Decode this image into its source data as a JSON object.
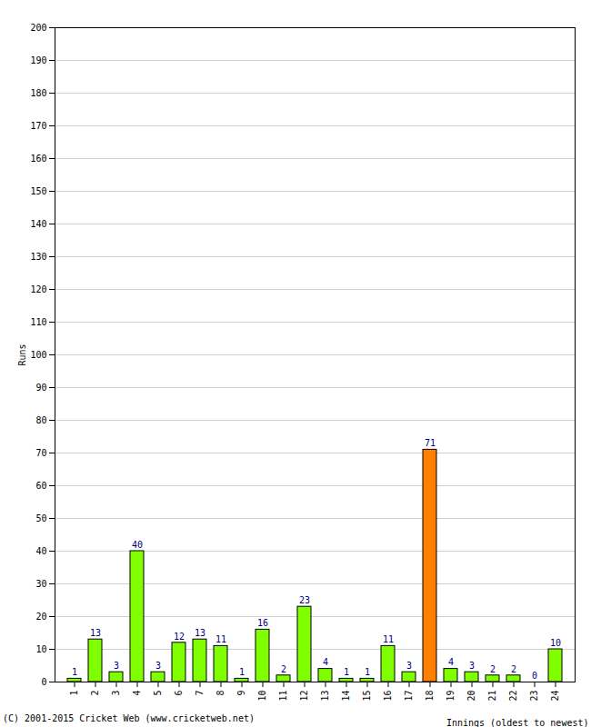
{
  "chart_data": {
    "type": "bar",
    "categories": [
      "1",
      "2",
      "3",
      "4",
      "5",
      "6",
      "7",
      "8",
      "9",
      "10",
      "11",
      "12",
      "13",
      "14",
      "15",
      "16",
      "17",
      "18",
      "19",
      "20",
      "21",
      "22",
      "23",
      "24"
    ],
    "values": [
      1,
      13,
      3,
      40,
      3,
      12,
      13,
      11,
      1,
      16,
      2,
      23,
      4,
      1,
      1,
      11,
      3,
      71,
      4,
      3,
      2,
      2,
      0,
      10
    ],
    "colors": [
      "#80ff00",
      "#80ff00",
      "#80ff00",
      "#80ff00",
      "#80ff00",
      "#80ff00",
      "#80ff00",
      "#80ff00",
      "#80ff00",
      "#80ff00",
      "#80ff00",
      "#80ff00",
      "#80ff00",
      "#80ff00",
      "#80ff00",
      "#80ff00",
      "#80ff00",
      "#ff8000",
      "#80ff00",
      "#80ff00",
      "#80ff00",
      "#80ff00",
      "#80ff00",
      "#80ff00"
    ],
    "x_label": "Innings (oldest to newest)",
    "y_label": "Runs",
    "annotations": [
      "(C) 2001-2015 Cricket Web (www.cricketweb.net)"
    ],
    "ylim": [
      0,
      200
    ],
    "yticks": [
      0,
      10,
      20,
      30,
      40,
      50,
      60,
      70,
      80,
      90,
      100,
      110,
      120,
      130,
      140,
      150,
      160,
      170,
      180,
      190,
      200
    ],
    "grid": true,
    "data_labels": true
  }
}
